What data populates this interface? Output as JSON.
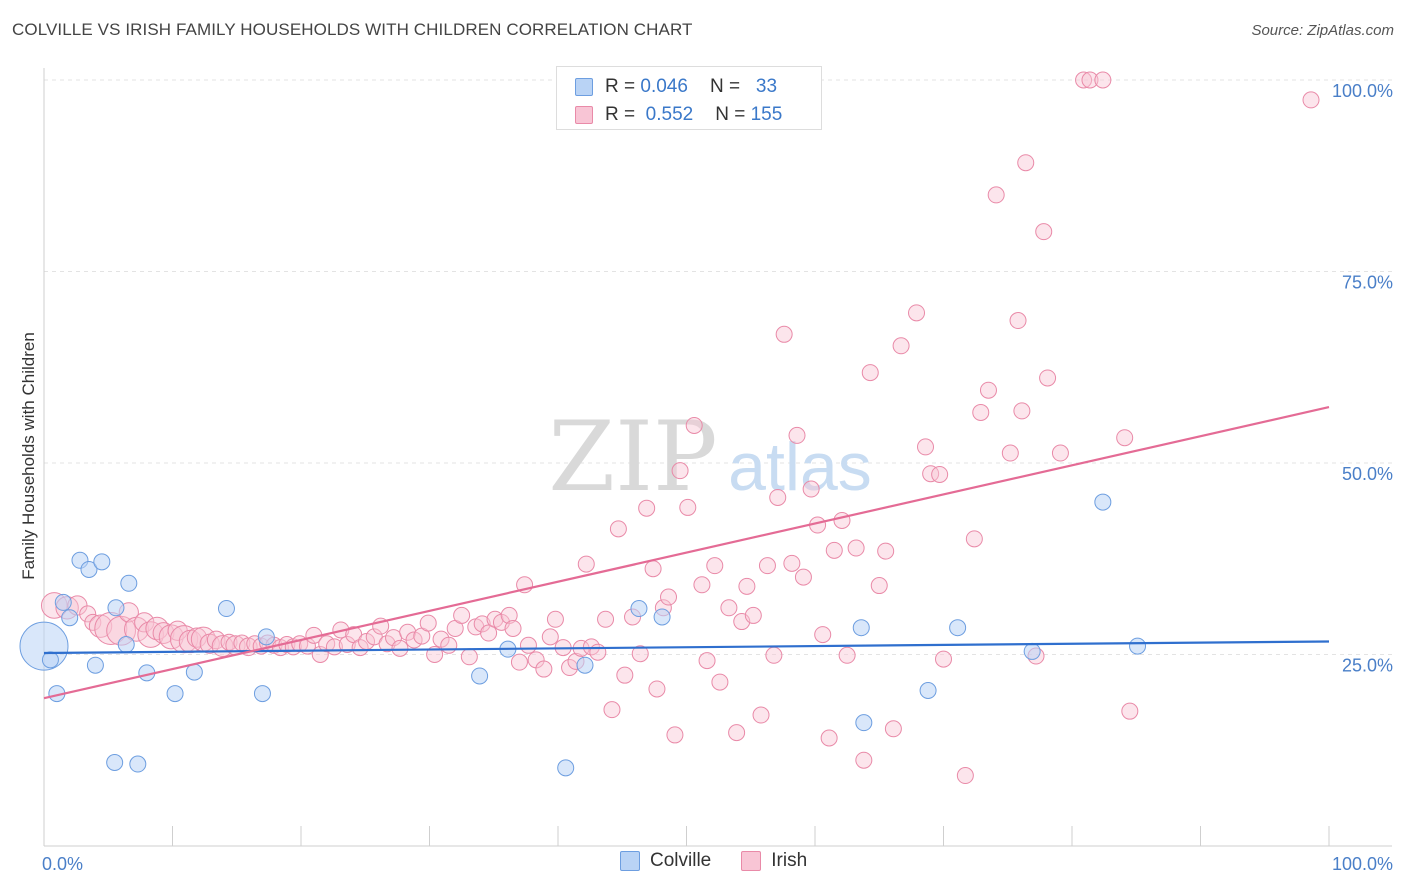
{
  "title": "COLVILLE VS IRISH FAMILY HOUSEHOLDS WITH CHILDREN CORRELATION CHART",
  "source": "Source: ZipAtlas.com",
  "watermark": {
    "zip": "ZIP",
    "atlas": "atlas"
  },
  "legend": {
    "r_label": "R =",
    "n_label": "N =",
    "entries": [
      {
        "name": "Colville",
        "r": "0.046",
        "n": "33",
        "fill": "#b9d3f5",
        "stroke": "#6d9ee0"
      },
      {
        "name": "Irish",
        "r": "0.552",
        "n": "155",
        "fill": "#f8c5d5",
        "stroke": "#e98aa8"
      }
    ]
  },
  "colors": {
    "blue_line": "#2f6fce",
    "pink_line": "#e46b95",
    "tick_text": "#4a7fc8"
  },
  "chart_data": {
    "type": "scatter",
    "xlabel": "",
    "ylabel": "Family Households with Children",
    "xlim": [
      0,
      100
    ],
    "ylim": [
      0,
      100
    ],
    "x_tick_labels": [
      "0.0%",
      "100.0%"
    ],
    "y_ticks": [
      25,
      50,
      75,
      100
    ],
    "y_tick_labels": [
      "25.0%",
      "50.0%",
      "75.0%",
      "100.0%"
    ],
    "grid": "horizontal dashed",
    "series": [
      {
        "name": "Colville",
        "trend": {
          "x0": 0,
          "y0": 25.2,
          "x1": 100,
          "y1": 26.7
        },
        "points": [
          [
            0.0,
            26.1,
            3
          ],
          [
            0.5,
            24.3,
            1
          ],
          [
            1.0,
            19.9,
            1
          ],
          [
            1.5,
            31.8,
            1
          ],
          [
            2.0,
            29.8,
            1
          ],
          [
            2.8,
            37.3,
            1
          ],
          [
            3.5,
            36.1,
            1
          ],
          [
            4.0,
            23.6,
            1
          ],
          [
            4.5,
            37.1,
            1
          ],
          [
            5.5,
            10.9,
            1
          ],
          [
            5.6,
            31.1,
            1
          ],
          [
            6.4,
            26.3,
            1
          ],
          [
            6.6,
            34.3,
            1
          ],
          [
            7.3,
            10.7,
            1
          ],
          [
            8.0,
            22.6,
            1
          ],
          [
            10.2,
            19.9,
            1
          ],
          [
            11.7,
            22.7,
            1
          ],
          [
            14.2,
            31.0,
            1
          ],
          [
            17.0,
            19.9,
            1
          ],
          [
            17.3,
            27.3,
            1
          ],
          [
            33.9,
            22.2,
            1
          ],
          [
            36.1,
            25.7,
            1
          ],
          [
            40.6,
            10.2,
            1
          ],
          [
            42.1,
            23.6,
            1
          ],
          [
            46.3,
            31.0,
            1
          ],
          [
            48.1,
            29.9,
            1
          ],
          [
            63.6,
            28.5,
            1
          ],
          [
            63.8,
            16.1,
            1
          ],
          [
            68.8,
            20.3,
            1
          ],
          [
            71.1,
            28.5,
            1
          ],
          [
            76.9,
            25.4,
            1
          ],
          [
            82.4,
            44.9,
            1
          ],
          [
            85.1,
            26.1,
            1
          ]
        ]
      },
      {
        "name": "Irish",
        "trend": {
          "x0": 0,
          "y0": 19.3,
          "x1": 100,
          "y1": 57.3
        },
        "points": [
          [
            0.8,
            31.4,
            1.6
          ],
          [
            1.8,
            31.1,
            1.4
          ],
          [
            2.6,
            31.4,
            1.2
          ],
          [
            3.4,
            30.3,
            1
          ],
          [
            3.8,
            29.2,
            1
          ],
          [
            4.4,
            28.7,
            1.4
          ],
          [
            5.2,
            28.4,
            2
          ],
          [
            6.0,
            28.1,
            1.8
          ],
          [
            6.6,
            30.5,
            1.2
          ],
          [
            7.2,
            28.3,
            1.5
          ],
          [
            7.8,
            29.2,
            1.2
          ],
          [
            8.3,
            27.6,
            1.6
          ],
          [
            8.8,
            28.4,
            1.4
          ],
          [
            9.3,
            27.8,
            1.3
          ],
          [
            9.9,
            27.3,
            1.5
          ],
          [
            10.4,
            28.1,
            1.2
          ],
          [
            10.9,
            27.0,
            1.7
          ],
          [
            11.4,
            26.7,
            1.4
          ],
          [
            11.9,
            27.2,
            1.2
          ],
          [
            12.4,
            27.0,
            1.5
          ],
          [
            12.9,
            26.4,
            1.2
          ],
          [
            13.4,
            26.9,
            1.1
          ],
          [
            13.9,
            26.1,
            1.3
          ],
          [
            14.4,
            26.6,
            1
          ],
          [
            14.9,
            26.2,
            1.2
          ],
          [
            15.4,
            26.5,
            1
          ],
          [
            15.9,
            26.0,
            1.1
          ],
          [
            16.4,
            26.4,
            1
          ],
          [
            16.9,
            26.1,
            1
          ],
          [
            17.4,
            26.5,
            1
          ],
          [
            17.9,
            26.2,
            1
          ],
          [
            18.4,
            25.9,
            1
          ],
          [
            18.9,
            26.3,
            1
          ],
          [
            19.4,
            26.0,
            1
          ],
          [
            19.9,
            26.4,
            1
          ],
          [
            20.5,
            26.1,
            1
          ],
          [
            21.0,
            27.5,
            1
          ],
          [
            21.5,
            25.0,
            1
          ],
          [
            22.0,
            26.4,
            1
          ],
          [
            22.6,
            26.0,
            1
          ],
          [
            23.1,
            28.2,
            1
          ],
          [
            23.6,
            26.3,
            1
          ],
          [
            24.1,
            27.6,
            1
          ],
          [
            24.6,
            25.9,
            1
          ],
          [
            25.1,
            26.7,
            1
          ],
          [
            25.7,
            27.3,
            1
          ],
          [
            26.2,
            28.7,
            1
          ],
          [
            26.7,
            26.4,
            1
          ],
          [
            27.2,
            27.2,
            1
          ],
          [
            27.7,
            25.8,
            1
          ],
          [
            28.3,
            27.9,
            1
          ],
          [
            28.8,
            26.9,
            1
          ],
          [
            29.4,
            27.4,
            1
          ],
          [
            29.9,
            29.1,
            1
          ],
          [
            30.4,
            25.0,
            1
          ],
          [
            30.9,
            27.0,
            1
          ],
          [
            31.5,
            26.2,
            1
          ],
          [
            32.0,
            28.4,
            1
          ],
          [
            32.5,
            30.1,
            1
          ],
          [
            33.1,
            24.7,
            1
          ],
          [
            33.6,
            28.6,
            1
          ],
          [
            34.1,
            29.0,
            1
          ],
          [
            34.6,
            27.8,
            1
          ],
          [
            35.1,
            29.6,
            1
          ],
          [
            35.6,
            29.2,
            1
          ],
          [
            36.2,
            30.1,
            1
          ],
          [
            36.5,
            28.4,
            1
          ],
          [
            37.0,
            24.0,
            1
          ],
          [
            37.4,
            34.1,
            1
          ],
          [
            37.7,
            26.2,
            1
          ],
          [
            38.3,
            24.3,
            1
          ],
          [
            38.9,
            23.1,
            1
          ],
          [
            39.4,
            27.3,
            1
          ],
          [
            39.8,
            29.6,
            1
          ],
          [
            40.4,
            25.9,
            1
          ],
          [
            40.9,
            23.3,
            1
          ],
          [
            41.4,
            24.1,
            1
          ],
          [
            41.8,
            25.8,
            1
          ],
          [
            42.2,
            36.8,
            1
          ],
          [
            42.6,
            26.0,
            1
          ],
          [
            43.1,
            25.3,
            1
          ],
          [
            43.7,
            29.6,
            1
          ],
          [
            44.2,
            17.8,
            1
          ],
          [
            44.7,
            41.4,
            1
          ],
          [
            45.2,
            22.3,
            1
          ],
          [
            45.8,
            29.9,
            1
          ],
          [
            46.4,
            25.1,
            1
          ],
          [
            46.9,
            44.1,
            1
          ],
          [
            47.4,
            36.2,
            1
          ],
          [
            47.7,
            20.5,
            1
          ],
          [
            48.2,
            31.1,
            1
          ],
          [
            48.6,
            32.5,
            1
          ],
          [
            49.1,
            14.5,
            1
          ],
          [
            49.5,
            49.0,
            1
          ],
          [
            50.1,
            44.2,
            1
          ],
          [
            50.6,
            54.9,
            1
          ],
          [
            51.2,
            34.1,
            1
          ],
          [
            51.6,
            24.2,
            1
          ],
          [
            52.2,
            36.6,
            1
          ],
          [
            52.6,
            21.4,
            1
          ],
          [
            53.3,
            31.1,
            1
          ],
          [
            53.9,
            14.8,
            1
          ],
          [
            54.3,
            29.3,
            1
          ],
          [
            54.7,
            33.9,
            1
          ],
          [
            55.2,
            30.1,
            1
          ],
          [
            55.8,
            17.1,
            1
          ],
          [
            56.3,
            36.6,
            1
          ],
          [
            56.8,
            24.9,
            1
          ],
          [
            57.1,
            45.5,
            1
          ],
          [
            57.6,
            66.8,
            1
          ],
          [
            58.2,
            36.9,
            1
          ],
          [
            58.6,
            53.6,
            1
          ],
          [
            59.1,
            35.1,
            1
          ],
          [
            59.7,
            46.6,
            1
          ],
          [
            60.2,
            41.9,
            1
          ],
          [
            60.6,
            27.6,
            1
          ],
          [
            61.1,
            14.1,
            1
          ],
          [
            61.5,
            38.6,
            1
          ],
          [
            62.1,
            42.5,
            1
          ],
          [
            62.5,
            24.9,
            1
          ],
          [
            63.2,
            38.9,
            1
          ],
          [
            63.8,
            11.2,
            1
          ],
          [
            64.3,
            61.8,
            1
          ],
          [
            65.0,
            34.0,
            1
          ],
          [
            65.5,
            38.5,
            1
          ],
          [
            66.1,
            15.3,
            1
          ],
          [
            66.7,
            65.3,
            1
          ],
          [
            67.9,
            69.6,
            1
          ],
          [
            68.6,
            52.1,
            1
          ],
          [
            69.0,
            48.6,
            1
          ],
          [
            69.7,
            48.5,
            1
          ],
          [
            70.0,
            24.4,
            1
          ],
          [
            71.7,
            9.2,
            1
          ],
          [
            72.4,
            40.1,
            1
          ],
          [
            72.9,
            56.6,
            1
          ],
          [
            73.5,
            59.5,
            1
          ],
          [
            74.1,
            85.0,
            1
          ],
          [
            75.2,
            51.3,
            1
          ],
          [
            75.8,
            68.6,
            1
          ],
          [
            76.1,
            56.8,
            1
          ],
          [
            76.4,
            89.2,
            1
          ],
          [
            77.2,
            24.8,
            1
          ],
          [
            77.8,
            80.2,
            1
          ],
          [
            78.1,
            61.1,
            1
          ],
          [
            79.1,
            51.3,
            1
          ],
          [
            80.9,
            100.0,
            1
          ],
          [
            81.4,
            100.0,
            1
          ],
          [
            82.4,
            100.0,
            1
          ],
          [
            84.1,
            53.3,
            1
          ],
          [
            84.5,
            17.6,
            1
          ],
          [
            98.6,
            97.4,
            1
          ]
        ]
      }
    ]
  }
}
